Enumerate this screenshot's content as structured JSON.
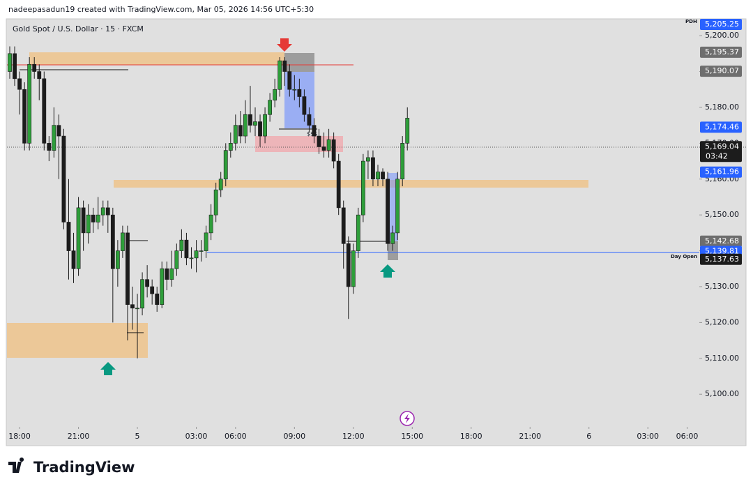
{
  "header": "nadeepasadun19 created with TradingView.com, Mar 05, 2026 14:56 UTC+5:30",
  "footer": "TradingView",
  "chart_data": {
    "type": "candlestick",
    "title": "Gold Spot / U.S. Dollar · 15 · FXCM",
    "up_color": "#2e9e3a",
    "down_color": "#1c1c1c",
    "open": [
      5190,
      5195,
      5188,
      5185,
      5170,
      5192,
      5190,
      5188,
      5170,
      5168,
      5175,
      5172,
      5148,
      5140,
      5135,
      5152,
      5145,
      5150,
      5148,
      5150,
      5152,
      5150,
      5135,
      5140,
      5145,
      5125,
      5124,
      5124,
      5132,
      5130,
      5128,
      5125,
      5135,
      5132,
      5135,
      5140,
      5143,
      5138,
      5138,
      5140,
      5140,
      5145,
      5150,
      5157,
      5160,
      5168,
      5170,
      5175,
      5172,
      5178,
      5175,
      5176,
      5172,
      5178,
      5182,
      5185,
      5193,
      5190,
      5185,
      5185,
      5183,
      5178,
      5175,
      5172,
      5169,
      5168,
      5171,
      5165,
      5152,
      5142,
      5130,
      5140,
      5150,
      5165,
      5166,
      5160,
      5162,
      5160,
      5142,
      5145,
      5160,
      5170
    ],
    "high": [
      5197,
      5197,
      5190,
      5187,
      5194,
      5194,
      5192,
      5190,
      5172,
      5180,
      5178,
      5174,
      5160,
      5145,
      5155,
      5154,
      5153,
      5152,
      5155,
      5154,
      5154,
      5152,
      5143,
      5147,
      5147,
      5130,
      5128,
      5134,
      5136,
      5132,
      5130,
      5137,
      5137,
      5140,
      5142,
      5146,
      5145,
      5141,
      5143,
      5143,
      5147,
      5153,
      5159,
      5162,
      5170,
      5173,
      5178,
      5179,
      5182,
      5186,
      5180,
      5178,
      5180,
      5184,
      5188,
      5194,
      5194,
      5192,
      5189,
      5188,
      5185,
      5180,
      5177,
      5174,
      5173,
      5174,
      5173,
      5167,
      5154,
      5144,
      5142,
      5152,
      5167,
      5168,
      5168,
      5164,
      5163,
      5162,
      5147,
      5162,
      5172,
      5180
    ],
    "low": [
      5188,
      5186,
      5178,
      5168,
      5168,
      5188,
      5182,
      5168,
      5165,
      5166,
      5160,
      5146,
      5132,
      5131,
      5133,
      5140,
      5142,
      5145,
      5146,
      5147,
      5145,
      5120,
      5130,
      5138,
      5115,
      5118,
      5110,
      5122,
      5127,
      5125,
      5123,
      5124,
      5129,
      5130,
      5133,
      5138,
      5136,
      5135,
      5134,
      5137,
      5138,
      5143,
      5148,
      5155,
      5158,
      5166,
      5168,
      5170,
      5170,
      5173,
      5172,
      5169,
      5170,
      5176,
      5180,
      5183,
      5186,
      5183,
      5182,
      5180,
      5176,
      5173,
      5170,
      5167,
      5166,
      5166,
      5163,
      5150,
      5135,
      5121,
      5128,
      5138,
      5148,
      5160,
      5158,
      5158,
      5158,
      5140,
      5140,
      5143,
      5158,
      5168
    ],
    "close": [
      5195,
      5188,
      5185,
      5170,
      5192,
      5190,
      5188,
      5170,
      5168,
      5175,
      5172,
      5148,
      5140,
      5135,
      5152,
      5145,
      5150,
      5148,
      5150,
      5152,
      5150,
      5135,
      5140,
      5145,
      5125,
      5124,
      5124,
      5132,
      5130,
      5128,
      5125,
      5135,
      5132,
      5135,
      5140,
      5143,
      5138,
      5138,
      5140,
      5140,
      5145,
      5150,
      5157,
      5160,
      5168,
      5170,
      5175,
      5172,
      5178,
      5175,
      5176,
      5172,
      5178,
      5182,
      5185,
      5193,
      5190,
      5185,
      5185,
      5183,
      5178,
      5175,
      5172,
      5169,
      5168,
      5171,
      5165,
      5152,
      5142,
      5130,
      5140,
      5150,
      5165,
      5166,
      5160,
      5162,
      5160,
      5142,
      5145,
      5160,
      5170,
      5177
    ],
    "ylim": [
      5090.9,
      5204.5
    ],
    "yticks": [
      {
        "value": 5200,
        "label": "5,200.00"
      },
      {
        "value": 5190,
        "label": "5,190.00"
      },
      {
        "value": 5180,
        "label": "5,180.00"
      },
      {
        "value": 5170,
        "label": "5,170.00"
      },
      {
        "value": 5160,
        "label": "5,160.00"
      },
      {
        "value": 5150,
        "label": "5,150.00"
      },
      {
        "value": 5140,
        "label": "5,140.00"
      },
      {
        "value": 5130,
        "label": "5,130.00"
      },
      {
        "value": 5120,
        "label": "5,120.00"
      },
      {
        "value": 5110,
        "label": "5,110.00"
      },
      {
        "value": 5100,
        "label": "5,100.00"
      }
    ],
    "xticks": [
      {
        "value": 2,
        "label": "18:00"
      },
      {
        "value": 14,
        "label": "21:00"
      },
      {
        "value": 26,
        "label": "5"
      },
      {
        "value": 38,
        "label": "03:00"
      },
      {
        "value": 46,
        "label": "06:00"
      },
      {
        "value": 58,
        "label": "09:00"
      },
      {
        "value": 70,
        "label": "12:00"
      },
      {
        "value": 82,
        "label": "15:00"
      },
      {
        "value": 94,
        "label": "18:00"
      },
      {
        "value": 106,
        "label": "21:00"
      },
      {
        "value": 118,
        "label": "6"
      },
      {
        "value": 130,
        "label": "03:00"
      },
      {
        "value": 138,
        "label": "06:00"
      }
    ],
    "price_labels": [
      {
        "value": 5205.25,
        "label": "5,205.25",
        "color": "#2962ff"
      },
      {
        "value": 5195.37,
        "label": "5,195.37",
        "color": "#6e6e6e"
      },
      {
        "value": 5190.07,
        "label": "5,190.07",
        "color": "#6e6e6e"
      },
      {
        "value": 5174.46,
        "label": "5,174.46",
        "color": "#2962ff"
      },
      {
        "value": 5169.04,
        "label": "5,169.04",
        "color": "#1c1c1c"
      },
      {
        "value": 5161.96,
        "label": "5,161.96",
        "color": "#2962ff"
      },
      {
        "value": 5142.68,
        "label": "5,142.68",
        "color": "#6e6e6e"
      },
      {
        "value": 5139.81,
        "label": "5,139.81",
        "color": "#2962ff"
      },
      {
        "value": 5137.63,
        "label": "5,137.63",
        "color": "#1c1c1c"
      }
    ],
    "countdown": "03:42",
    "annotations": {
      "pdh": "PDH",
      "day_open": "Day Open",
      "liquidity": "$$$"
    }
  }
}
